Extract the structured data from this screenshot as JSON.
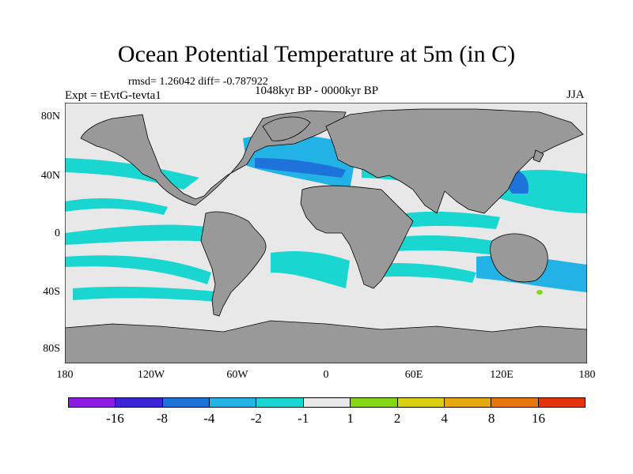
{
  "title": "Ocean Potential Temperature at 5m (in C)",
  "stats": "rmsd= 1.26042 diff= -0.787922",
  "experiment": "Expt = tEvtG-tevta1",
  "period": "1048kyr BP - 0000kyr BP",
  "season": "JJA",
  "lat_labels": [
    "80N",
    "40N",
    "0",
    "40S",
    "80S"
  ],
  "lon_labels": [
    "180",
    "120W",
    "60W",
    "0",
    "60E",
    "120E",
    "180"
  ],
  "colorbar": {
    "colors": [
      "#8c1de0",
      "#3a24d6",
      "#1d73d9",
      "#22b2e6",
      "#1ad6d0",
      "#e8e8e8",
      "#86d615",
      "#d8cf13",
      "#e5a80e",
      "#e7760c",
      "#e4320a"
    ],
    "labels": [
      "-16",
      "-8",
      "-4",
      "-2",
      "-1",
      "1",
      "2",
      "4",
      "8",
      "16"
    ]
  },
  "map_colors": {
    "ocean": "#e8e8e8",
    "land": "#999999",
    "cool1": "#1ad6d0",
    "cool2": "#22b2e6",
    "cool3": "#1d73d9",
    "warm": "#86d615"
  }
}
